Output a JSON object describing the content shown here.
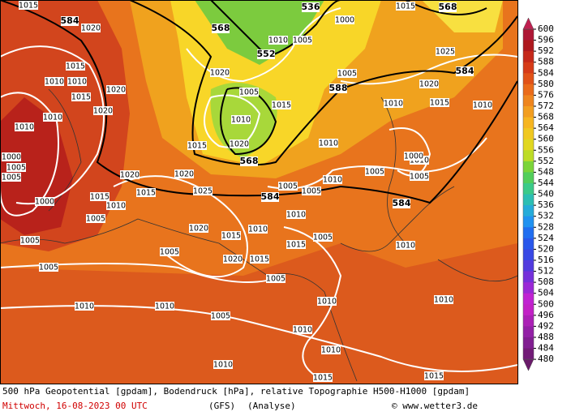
{
  "map": {
    "isobar_labels": [
      1015,
      1020,
      1015,
      1010,
      1010,
      1015,
      1020,
      1010,
      1020,
      1010,
      1000,
      1005,
      1005,
      1000,
      1005,
      1005,
      1010,
      1010,
      1005,
      1010,
      1015,
      1015,
      1010,
      1010,
      1010,
      1010,
      1005,
      1005,
      1015,
      1005,
      1010,
      1010,
      1005,
      1010,
      1005,
      1010,
      1005,
      1000,
      1010,
      1015,
      1020,
      1005,
      1015,
      1010,
      1010,
      1005,
      1000,
      1025,
      1020,
      1015,
      1010,
      1010,
      1005,
      1015,
      1020,
      1025,
      1020,
      1015,
      1010,
      1005,
      1020,
      1015,
      1020,
      1015,
      1020,
      1015,
      1010,
      1005
    ],
    "height_labels": [
      584,
      568,
      552,
      536,
      568,
      584,
      588,
      568,
      584,
      584
    ]
  },
  "colorbar": {
    "labels": [
      600,
      596,
      592,
      588,
      584,
      580,
      576,
      572,
      568,
      564,
      560,
      556,
      552,
      548,
      544,
      540,
      536,
      532,
      528,
      524,
      520,
      516,
      512,
      508,
      504,
      500,
      496,
      492,
      488,
      484,
      480
    ]
  },
  "footer": {
    "description": "500 hPa Geopotential [gpdam], Bodendruck [hPa], relative Topographie H500-H1000 [gpdam]",
    "datetime": "Mittwoch, 16-08-2023  00 UTC",
    "model": "(GFS)",
    "run": "(Analyse)",
    "credit": "© www.wetter3.de"
  }
}
